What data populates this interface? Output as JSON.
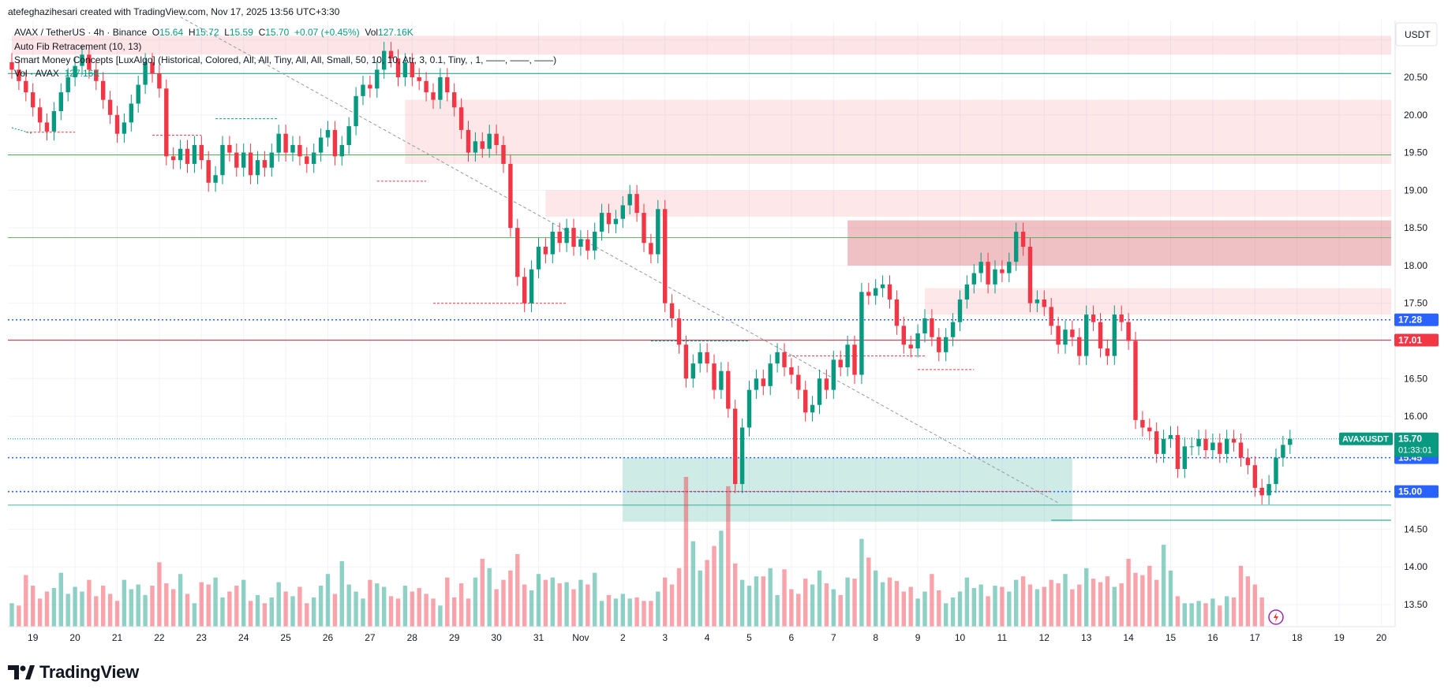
{
  "header": {
    "created_by": "atefeghazihesari created with TradingView.com, Nov 17, 2025 13:56 UTC+3:30"
  },
  "legend": {
    "symbol": "AVAX / TetherUS · 4h · Binance",
    "open_label": "O",
    "open": "15.64",
    "high_label": "H",
    "high": "15.72",
    "low_label": "L",
    "low": "15.59",
    "close_label": "C",
    "close": "15.70",
    "change": "+0.07 (+0.45%)",
    "vol_label": "Vol",
    "vol": "127.16K",
    "fib": "Auto Fib Retracement (10, 13)",
    "smc": "Smart Money Concepts [LuxAlgo] (Historical, Colored, All, All, Tiny, All, All, Small, 50, 10, 10, Atr, 3, 0.1, Tiny, , 1, ——, ——, ——)",
    "vol_indicator": "Vol · AVAX",
    "vol_indicator_value": "127.16K"
  },
  "axis": {
    "currency": "USDT",
    "symbol_tag": "AVAXUSDT",
    "countdown": "01:33:01"
  },
  "brand": {
    "name": "TradingView"
  },
  "colors": {
    "up": "#089981",
    "down": "#f23645",
    "blue": "#2962ff",
    "green_line": "#4caf50",
    "red_line": "#f23645"
  },
  "chart_data": {
    "type": "candlestick",
    "timeframe": "4h",
    "ylim": [
      13.2,
      21.1
    ],
    "price_ticks": [
      "20.50",
      "20.00",
      "19.50",
      "19.00",
      "18.50",
      "18.00",
      "17.50",
      "16.50",
      "16.00",
      "14.50",
      "14.00",
      "13.50"
    ],
    "x_labels": [
      {
        "label": "19",
        "i": 3
      },
      {
        "label": "20",
        "i": 9
      },
      {
        "label": "21",
        "i": 15
      },
      {
        "label": "22",
        "i": 21
      },
      {
        "label": "23",
        "i": 27
      },
      {
        "label": "24",
        "i": 33
      },
      {
        "label": "25",
        "i": 39
      },
      {
        "label": "26",
        "i": 45
      },
      {
        "label": "27",
        "i": 51
      },
      {
        "label": "28",
        "i": 57
      },
      {
        "label": "29",
        "i": 63
      },
      {
        "label": "30",
        "i": 69
      },
      {
        "label": "31",
        "i": 75
      },
      {
        "label": "Nov",
        "i": 81
      },
      {
        "label": "2",
        "i": 87
      },
      {
        "label": "3",
        "i": 93
      },
      {
        "label": "4",
        "i": 99
      },
      {
        "label": "5",
        "i": 105
      },
      {
        "label": "6",
        "i": 111
      },
      {
        "label": "7",
        "i": 117
      },
      {
        "label": "8",
        "i": 123
      },
      {
        "label": "9",
        "i": 129
      },
      {
        "label": "10",
        "i": 135
      },
      {
        "label": "11",
        "i": 141
      },
      {
        "label": "12",
        "i": 147
      },
      {
        "label": "13",
        "i": 153
      },
      {
        "label": "14",
        "i": 159
      },
      {
        "label": "15",
        "i": 165
      },
      {
        "label": "16",
        "i": 171
      },
      {
        "label": "17",
        "i": 177
      },
      {
        "label": "18",
        "i": 183
      },
      {
        "label": "19",
        "i": 189
      },
      {
        "label": "20",
        "i": 195
      }
    ],
    "closes": [
      20.6,
      20.45,
      20.3,
      20.1,
      19.9,
      19.78,
      20.05,
      20.3,
      20.5,
      20.65,
      20.8,
      20.6,
      20.45,
      20.2,
      20.0,
      19.75,
      19.9,
      20.15,
      20.4,
      20.7,
      20.55,
      20.35,
      19.45,
      19.4,
      19.55,
      19.35,
      19.6,
      19.4,
      19.1,
      19.2,
      19.6,
      19.5,
      19.3,
      19.5,
      19.2,
      19.4,
      19.3,
      19.5,
      19.75,
      19.5,
      19.6,
      19.45,
      19.35,
      19.5,
      19.7,
      19.8,
      19.45,
      19.6,
      19.85,
      20.25,
      20.4,
      20.35,
      20.6,
      20.85,
      20.75,
      20.5,
      20.7,
      20.5,
      20.45,
      20.3,
      20.2,
      20.5,
      20.3,
      20.1,
      19.8,
      19.5,
      19.65,
      19.55,
      19.75,
      19.6,
      19.35,
      18.5,
      17.85,
      17.5,
      17.95,
      18.25,
      18.15,
      18.45,
      18.3,
      18.5,
      18.25,
      18.35,
      18.2,
      18.45,
      18.7,
      18.55,
      18.62,
      18.8,
      18.95,
      18.7,
      18.3,
      18.15,
      18.75,
      17.5,
      17.3,
      16.95,
      16.5,
      16.7,
      16.85,
      16.7,
      16.35,
      16.6,
      16.1,
      15.1,
      15.85,
      16.35,
      16.5,
      16.4,
      16.7,
      16.85,
      16.65,
      16.55,
      16.35,
      16.05,
      16.15,
      16.5,
      16.35,
      16.75,
      16.65,
      16.95,
      16.55,
      17.65,
      17.6,
      17.7,
      17.75,
      17.55,
      17.2,
      16.95,
      16.9,
      17.1,
      17.3,
      17.05,
      16.85,
      17.05,
      17.25,
      17.55,
      17.75,
      17.9,
      18.05,
      17.75,
      17.95,
      17.9,
      18.05,
      18.45,
      18.25,
      17.5,
      17.55,
      17.45,
      17.2,
      16.95,
      17.15,
      17.05,
      16.8,
      17.35,
      17.25,
      16.9,
      16.8,
      17.35,
      17.25,
      17.0,
      15.95,
      15.85,
      15.8,
      15.5,
      15.7,
      15.75,
      15.3,
      15.6,
      15.6,
      15.7,
      15.55,
      15.65,
      15.5,
      15.7,
      15.65,
      15.45,
      15.35,
      15.05,
      14.95,
      15.1,
      15.45,
      15.62,
      15.7
    ],
    "volumes": [
      20,
      18,
      44,
      35,
      24,
      30,
      33,
      46,
      28,
      34,
      30,
      40,
      26,
      35,
      28,
      22,
      40,
      32,
      36,
      27,
      35,
      55,
      37,
      32,
      45,
      28,
      20,
      38,
      36,
      42,
      25,
      30,
      35,
      40,
      22,
      27,
      20,
      25,
      38,
      30,
      26,
      34,
      20,
      25,
      35,
      45,
      28,
      56,
      36,
      30,
      24,
      40,
      37,
      34,
      26,
      24,
      35,
      30,
      33,
      28,
      24,
      18,
      42,
      25,
      37,
      24,
      42,
      58,
      50,
      32,
      40,
      48,
      62,
      36,
      31,
      45,
      40,
      42,
      37,
      38,
      32,
      40,
      36,
      46,
      22,
      27,
      24,
      28,
      24,
      25,
      22,
      22,
      30,
      42,
      36,
      50,
      128,
      73,
      48,
      57,
      69,
      82,
      120,
      54,
      40,
      35,
      43,
      43,
      50,
      27,
      49,
      32,
      28,
      41,
      36,
      48,
      37,
      32,
      27,
      42,
      41,
      75,
      59,
      48,
      38,
      42,
      39,
      30,
      34,
      24,
      30,
      45,
      31,
      20,
      25,
      30,
      42,
      33,
      36,
      26,
      35,
      34,
      30,
      40,
      43,
      36,
      32,
      34,
      40,
      37,
      45,
      32,
      36,
      50,
      41,
      38,
      43,
      34,
      37,
      58,
      46,
      44,
      52,
      40,
      70,
      48,
      26,
      20,
      20,
      22,
      20,
      24,
      18,
      26,
      25,
      52,
      43,
      36,
      25
    ]
  }
}
